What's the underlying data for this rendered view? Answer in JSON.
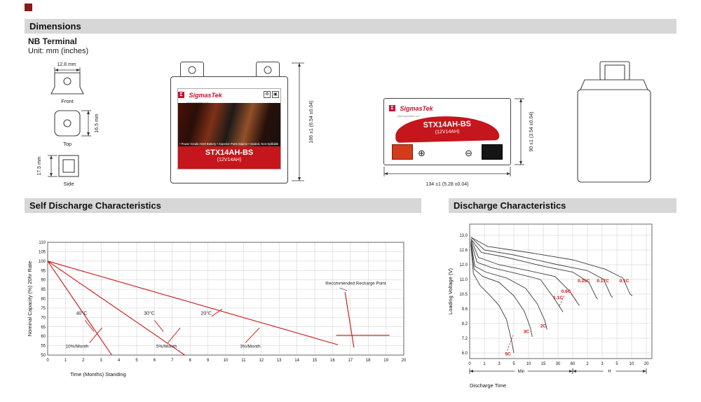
{
  "brand_color": "#c8102e",
  "header": {
    "dimensions": "Dimensions",
    "self_discharge": "Self Discharge Characteristics",
    "discharge": "Discharge Characteristics"
  },
  "terminal": {
    "title": "NB Terminal",
    "unit": "Unit: mm (inches)",
    "front_width": "12.8 mm",
    "front": "Front",
    "top": "Top",
    "top_height": "16.5 mm",
    "side": "Side",
    "side_depth": "17.5 mm"
  },
  "battery": {
    "brand_mark": "Σ",
    "brand": "SigmasTek",
    "tagline": "www.sigmastek.com",
    "model": "STX14AH-BS",
    "spec": "(12V14AH)",
    "features": "• Power Grade AGM Battery   • Superior Parts Source   • Sealed, Non-Spillable   • Maintenance Free",
    "recycle_icon": "♻",
    "box_icon": "▣",
    "plus": "⊕",
    "minus": "⊖",
    "front_height_dim": "166 ±1 (6.54 ±0.04)",
    "side_width_dim": "134 ±1 (5.28 ±0.04)",
    "side_height_dim": "90 ±1 (3.54 ±0.04)"
  },
  "chart_data": [
    {
      "id": "self-discharge",
      "type": "line",
      "title": "Self Discharge Characteristics",
      "xlabel": "Time (Months) Standing",
      "ylabel": "Nominal Capacity (%) 20hr Rate",
      "xlim": [
        0,
        20
      ],
      "ylim": [
        50,
        110
      ],
      "x_tick_step": 1,
      "y_tick_step": 5,
      "grid": true,
      "legend_position": "none",
      "line_color": "#cc1111",
      "series": [
        {
          "name": "40°C",
          "points": [
            [
              0,
              100
            ],
            [
              3.6,
              50
            ]
          ]
        },
        {
          "name": "30°C",
          "points": [
            [
              0,
              100
            ],
            [
              7.7,
              50
            ]
          ]
        },
        {
          "name": "20°C",
          "points": [
            [
              0,
              100
            ],
            [
              16.3,
              55.5
            ]
          ]
        },
        {
          "name": "recharge-drop",
          "points": [
            [
              16.7,
              83.5
            ],
            [
              17.2,
              54
            ]
          ]
        },
        {
          "name": "recharge-hold",
          "points": [
            [
              16.2,
              60.5
            ],
            [
              19.2,
              60.5
            ]
          ]
        }
      ],
      "pointer_segments": [
        [
          [
            2.1,
            68.5
          ],
          [
            2.6,
            62.5
          ]
        ],
        [
          [
            6.0,
            68.5
          ],
          [
            6.5,
            62.5
          ]
        ],
        [
          [
            9.2,
            70.5
          ],
          [
            9.8,
            74.5
          ]
        ],
        [
          [
            2.35,
            56.5
          ],
          [
            3.05,
            64.5
          ]
        ],
        [
          [
            6.75,
            56.5
          ],
          [
            7.45,
            64.5
          ]
        ],
        [
          [
            11.1,
            56.5
          ],
          [
            11.9,
            64.5
          ]
        ]
      ],
      "recharge_pointer": [
        [
          16.4,
          85.8
        ],
        [
          16.82,
          84.2
        ]
      ],
      "annotations": [
        {
          "text": "40°C",
          "x": 1.6,
          "y": 71.5,
          "anchor": "start",
          "fs": 7
        },
        {
          "text": "30°C",
          "x": 5.4,
          "y": 71.5,
          "anchor": "start",
          "fs": 7
        },
        {
          "text": "20°C",
          "x": 8.6,
          "y": 71.5,
          "anchor": "start",
          "fs": 7
        },
        {
          "text": "10%/Month",
          "x": 1.0,
          "y": 54,
          "anchor": "start",
          "fs": 6.5
        },
        {
          "text": "5%/Month",
          "x": 6.1,
          "y": 54,
          "anchor": "start",
          "fs": 6.5
        },
        {
          "text": "3%/Month",
          "x": 10.8,
          "y": 54,
          "anchor": "start",
          "fs": 6.5
        },
        {
          "text": "Recommended Recharge Point",
          "x": 17.3,
          "y": 87.5,
          "anchor": "middle",
          "fs": 6.2
        }
      ]
    },
    {
      "id": "discharge",
      "type": "line",
      "title": "Discharge Characteristics",
      "xlabel": "Discharge Time",
      "ylabel": "Loading Voltage (V)",
      "x_tick_labels": [
        "0",
        "1",
        "3",
        "5",
        "10",
        "15",
        "30",
        "60",
        "2",
        "3",
        "5",
        "10",
        "20"
      ],
      "y_ticks": [
        13.0,
        12.6,
        12.0,
        11.0,
        10.5,
        9.6,
        8.2,
        7.2,
        6.0
      ],
      "x_unit_groups": [
        {
          "label": "Min",
          "from_tick": 0,
          "to_tick": 7
        },
        {
          "label": "H",
          "from_tick": 7,
          "to_tick": 12
        }
      ],
      "grid": true,
      "curve_color": "#3c3c3c",
      "label_color": "#cc1111",
      "series": [
        {
          "name": "5C",
          "points": [
            [
              0.08,
              12.75
            ],
            [
              0.25,
              11.4
            ],
            [
              0.7,
              10.8
            ],
            [
              1.4,
              10.4
            ],
            [
              2.0,
              9.8
            ],
            [
              2.5,
              8.6
            ],
            [
              2.85,
              7.0
            ],
            [
              3.0,
              6.0
            ]
          ]
        },
        {
          "name": "3C",
          "points": [
            [
              0.08,
              12.8
            ],
            [
              0.3,
              11.7
            ],
            [
              0.9,
              11.2
            ],
            [
              2.0,
              10.9
            ],
            [
              3.0,
              10.4
            ],
            [
              3.7,
              9.4
            ],
            [
              4.1,
              8.0
            ],
            [
              4.25,
              7.3
            ]
          ]
        },
        {
          "name": "2C",
          "points": [
            [
              0.08,
              12.85
            ],
            [
              0.35,
              11.9
            ],
            [
              1.1,
              11.5
            ],
            [
              2.5,
              11.1
            ],
            [
              3.8,
              10.7
            ],
            [
              4.6,
              9.9
            ],
            [
              5.1,
              8.5
            ],
            [
              5.25,
              7.8
            ]
          ]
        },
        {
          "name": "1.1C",
          "points": [
            [
              0.08,
              12.85
            ],
            [
              0.5,
              12.1
            ],
            [
              1.5,
              11.8
            ],
            [
              3.2,
              11.4
            ],
            [
              4.8,
              11.0
            ],
            [
              5.7,
              10.3
            ],
            [
              6.2,
              9.6
            ],
            [
              6.35,
              9.3
            ]
          ]
        },
        {
          "name": "0.6C",
          "points": [
            [
              0.08,
              12.9
            ],
            [
              0.6,
              12.3
            ],
            [
              2.0,
              12.0
            ],
            [
              4.0,
              11.6
            ],
            [
              5.8,
              11.2
            ],
            [
              6.8,
              10.6
            ],
            [
              7.3,
              10.0
            ],
            [
              7.45,
              9.8
            ]
          ]
        },
        {
          "name": "0.25C",
          "points": [
            [
              0.08,
              12.9
            ],
            [
              0.8,
              12.5
            ],
            [
              2.5,
              12.3
            ],
            [
              5.0,
              11.9
            ],
            [
              7.0,
              11.5
            ],
            [
              8.1,
              10.9
            ],
            [
              8.6,
              10.3
            ],
            [
              8.7,
              10.2
            ]
          ]
        },
        {
          "name": "0.17C",
          "points": [
            [
              0.08,
              12.95
            ],
            [
              1.0,
              12.6
            ],
            [
              3.0,
              12.4
            ],
            [
              6.0,
              12.0
            ],
            [
              8.0,
              11.6
            ],
            [
              9.1,
              11.0
            ],
            [
              9.6,
              10.4
            ],
            [
              9.72,
              10.3
            ]
          ]
        },
        {
          "name": "0.1C",
          "points": [
            [
              0.08,
              12.95
            ],
            [
              1.2,
              12.7
            ],
            [
              4.0,
              12.5
            ],
            [
              7.0,
              12.2
            ],
            [
              9.2,
              11.7
            ],
            [
              10.4,
              11.1
            ],
            [
              10.9,
              10.5
            ],
            [
              11.05,
              10.4
            ]
          ]
        }
      ],
      "curve_labels": [
        {
          "text": "5C",
          "x": 2.6,
          "y": 5.8
        },
        {
          "text": "3C",
          "x": 3.85,
          "y": 7.55
        },
        {
          "text": "2C",
          "x": 5.0,
          "y": 7.95
        },
        {
          "text": "1.1C",
          "x": 6.0,
          "y": 10.2
        },
        {
          "text": "0.6C",
          "x": 6.55,
          "y": 10.55
        },
        {
          "text": "0.25C",
          "x": 7.75,
          "y": 10.9
        },
        {
          "text": "0.17C",
          "x": 9.05,
          "y": 10.9
        },
        {
          "text": "0.1C",
          "x": 10.5,
          "y": 10.9
        }
      ],
      "leader_segments": [
        [
          [
            2.55,
            6.2
          ],
          [
            2.95,
            7.4
          ]
        ],
        [
          [
            6.1,
            9.8
          ],
          [
            6.45,
            10.45
          ]
        ],
        [
          [
            6.9,
            10.5
          ],
          [
            7.3,
            10.05
          ]
        ]
      ]
    }
  ]
}
